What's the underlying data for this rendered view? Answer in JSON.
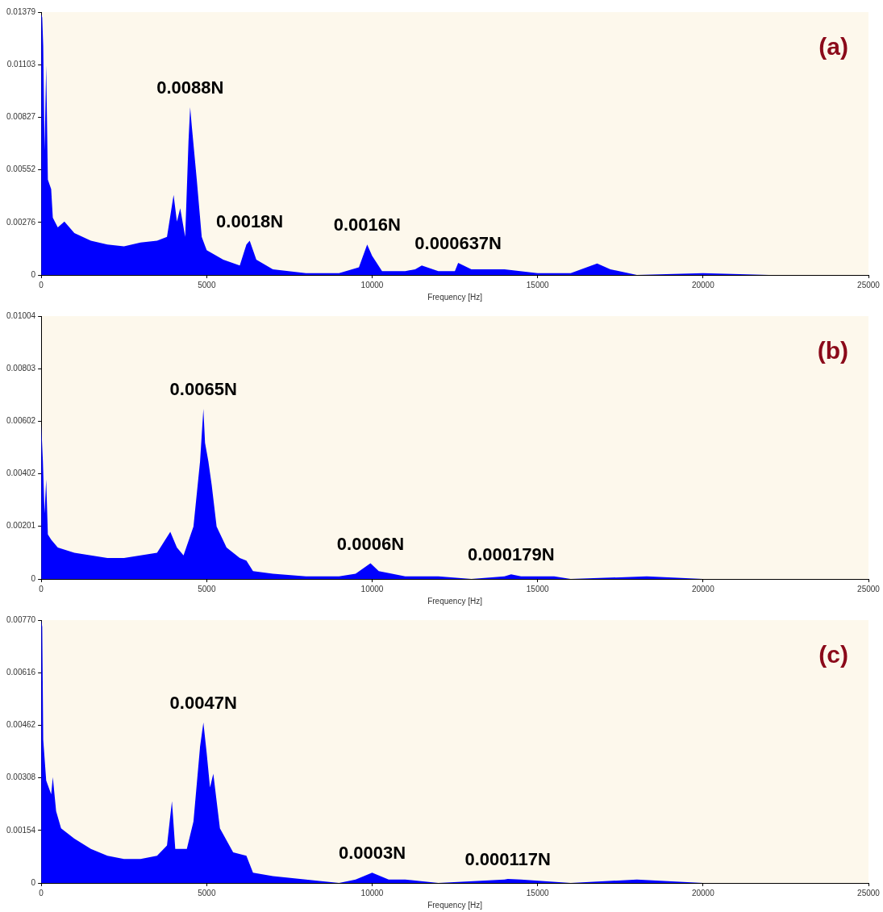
{
  "chart_data": [
    {
      "type": "area",
      "xlabel": "Frequency [Hz]",
      "color": "#0000ff",
      "x": [
        0,
        30,
        60,
        100,
        150,
        200,
        300,
        350,
        500,
        700,
        1000,
        1500,
        2000,
        2500,
        3000,
        3500,
        3800,
        4000,
        4100,
        4200,
        4350,
        4450,
        4500,
        4550,
        4700,
        4850,
        5000,
        5500,
        6000,
        6200,
        6300,
        6500,
        7000,
        8000,
        9000,
        9600,
        9850,
        10000,
        10300,
        11000,
        11300,
        11500,
        12000,
        12500,
        12600,
        13000,
        14000,
        15000,
        16000,
        16800,
        17200,
        18000,
        20000,
        22000,
        25000
      ],
      "values": [
        0.0137,
        0.0135,
        0.012,
        0.0065,
        0.011,
        0.005,
        0.0045,
        0.003,
        0.0025,
        0.0028,
        0.0022,
        0.0018,
        0.0016,
        0.0015,
        0.0017,
        0.0018,
        0.002,
        0.0042,
        0.0028,
        0.0035,
        0.002,
        0.007,
        0.0088,
        0.0078,
        0.005,
        0.002,
        0.0013,
        0.0008,
        0.0005,
        0.0016,
        0.0018,
        0.0008,
        0.0003,
        0.0001,
        0.0001,
        0.0004,
        0.0016,
        0.001,
        0.0002,
        0.0002,
        0.0003,
        0.0005,
        0.0002,
        0.0002,
        0.000637,
        0.0003,
        0.0003,
        0.0001,
        0.0001,
        0.0006,
        0.0003,
        0,
        0.0001,
        0,
        0
      ],
      "xlim": [
        0,
        25000
      ],
      "xticks": [
        0,
        5000,
        10000,
        15000,
        20000,
        25000
      ],
      "ylim": [
        0,
        0.01379
      ],
      "yticks": [
        0,
        0.00276,
        0.00552,
        0.00827,
        0.01103,
        0.01379
      ],
      "annotations": [
        {
          "text": "0.0088N",
          "x": 4500,
          "y": 0.0088
        },
        {
          "text": "0.0018N",
          "x": 6300,
          "y": 0.0018
        },
        {
          "text": "0.0016N",
          "x": 9850,
          "y": 0.0016
        },
        {
          "text": "0.000637N",
          "x": 12600,
          "y": 0.000637
        },
        "(a)"
      ]
    },
    {
      "type": "area",
      "xlabel": "Frequency [Hz]",
      "color": "#0000ff",
      "x": [
        0,
        50,
        100,
        150,
        200,
        300,
        500,
        1000,
        1500,
        2000,
        2500,
        3000,
        3500,
        3900,
        4100,
        4300,
        4600,
        4800,
        4900,
        4950,
        5050,
        5150,
        5300,
        5600,
        6000,
        6200,
        6400,
        7000,
        8000,
        9000,
        9500,
        9950,
        10200,
        11000,
        12000,
        13000,
        14000,
        14200,
        14500,
        15500,
        16000,
        18300,
        20000,
        25000
      ],
      "values": [
        0.0059,
        0.0045,
        0.0025,
        0.0038,
        0.0017,
        0.0015,
        0.0012,
        0.001,
        0.0009,
        0.0008,
        0.0008,
        0.0009,
        0.001,
        0.0018,
        0.0012,
        0.0009,
        0.002,
        0.0045,
        0.0065,
        0.0052,
        0.0045,
        0.0036,
        0.002,
        0.0012,
        0.0008,
        0.0007,
        0.0003,
        0.0002,
        0.0001,
        0.0001,
        0.0002,
        0.0006,
        0.0003,
        0.0001,
        0.0001,
        0,
        0.0001,
        0.000179,
        0.0001,
        0.0001,
        0,
        0.0001,
        0,
        0
      ],
      "xlim": [
        0,
        25000
      ],
      "xticks": [
        0,
        5000,
        10000,
        15000,
        20000,
        25000
      ],
      "ylim": [
        0,
        0.01004
      ],
      "yticks": [
        0,
        0.00201,
        0.00402,
        0.00602,
        0.00803,
        0.01004
      ],
      "annotations": [
        {
          "text": "0.0065N",
          "x": 4900,
          "y": 0.0065
        },
        {
          "text": "0.0006N",
          "x": 9950,
          "y": 0.0006
        },
        {
          "text": "0.000179N",
          "x": 14200,
          "y": 0.000179
        },
        "(b)"
      ]
    },
    {
      "type": "area",
      "xlabel": "Frequency [Hz]",
      "color": "#0000ff",
      "x": [
        0,
        30,
        60,
        150,
        300,
        350,
        450,
        600,
        1000,
        1500,
        2000,
        2500,
        3000,
        3500,
        3800,
        3950,
        4050,
        4400,
        4600,
        4800,
        4900,
        5000,
        5100,
        5200,
        5400,
        5800,
        6200,
        6400,
        7000,
        8000,
        9000,
        9500,
        10000,
        10500,
        11000,
        12000,
        14000,
        14100,
        14500,
        16000,
        18000,
        20000,
        25000
      ],
      "values": [
        0.0077,
        0.0075,
        0.0042,
        0.003,
        0.0026,
        0.0031,
        0.0021,
        0.0016,
        0.0013,
        0.001,
        0.0008,
        0.0007,
        0.0007,
        0.0008,
        0.0011,
        0.0024,
        0.001,
        0.001,
        0.0018,
        0.004,
        0.0047,
        0.0038,
        0.0028,
        0.0032,
        0.0016,
        0.0009,
        0.0008,
        0.0003,
        0.0002,
        0.0001,
        0,
        0.0001,
        0.0003,
        0.0001,
        0.0001,
        0,
        0.0001,
        0.000117,
        0.0001,
        0,
        0.0001,
        0,
        0
      ],
      "xlim": [
        0,
        25000
      ],
      "xticks": [
        0,
        5000,
        10000,
        15000,
        20000,
        25000
      ],
      "ylim": [
        0,
        0.0077
      ],
      "yticks": [
        0,
        0.00154,
        0.00308,
        0.00462,
        {
          "value": 0.00616,
          "label": "0.00616"
        },
        {
          "value": 0.0077,
          "label": "0.00770"
        }
      ],
      "annotations": [
        {
          "text": "0.0047N",
          "x": 4900,
          "y": 0.0047
        },
        {
          "text": "0.0003N",
          "x": 10000,
          "y": 0.0003
        },
        {
          "text": "0.000117N",
          "x": 14100,
          "y": 0.000117
        },
        "(c)"
      ]
    }
  ]
}
